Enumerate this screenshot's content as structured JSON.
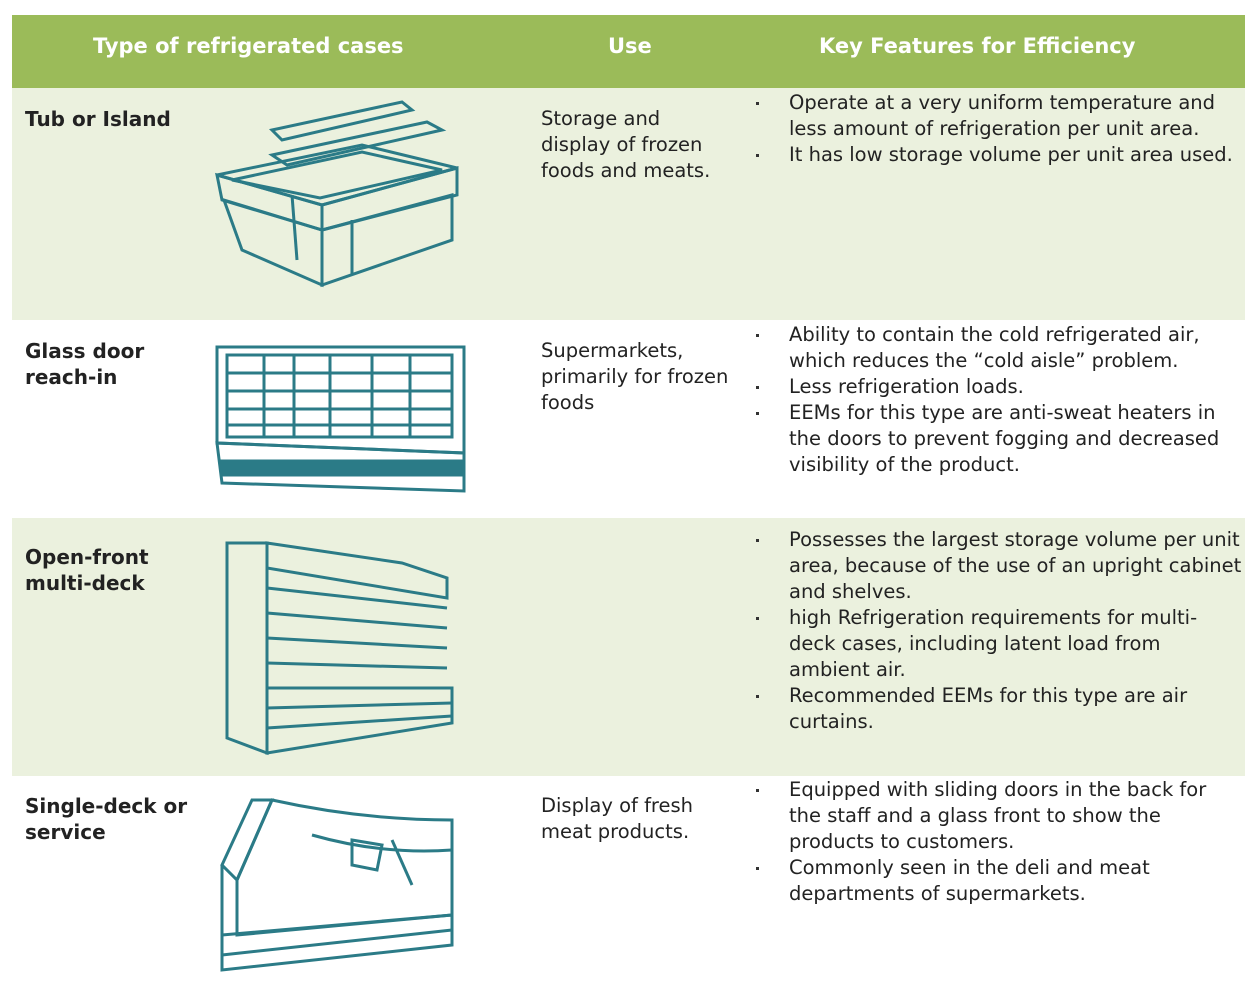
{
  "table": {
    "headers": [
      "Type of refrigerated cases",
      "Use",
      "Key Features for Efficiency"
    ],
    "rows": [
      {
        "type": "Tub or Island",
        "use": "Storage and display of frozen foods and meats.",
        "features": [
          "Operate at a very uniform temperature and less amount of refrigeration per unit area.",
          "It has low storage volume per unit area used."
        ]
      },
      {
        "type": "Glass door reach-in",
        "use": "Supermarkets, primarily for frozen foods",
        "features": [
          "Ability to contain the cold refrigerated air, which reduces the “cold aisle” problem.",
          "Less refrigeration loads.",
          "EEMs for this type are anti-sweat heaters in the doors to prevent fogging and decreased visibility of the product."
        ]
      },
      {
        "type": "Open-front multi-deck",
        "features": [
          "Possesses the largest storage volume per unit area, because of the use of an upright cabinet and shelves.",
          "high Refrigeration requirements for multi-deck cases, including latent load from ambient air.",
          "Recommended EEMs for this type are air curtains."
        ]
      },
      {
        "type": "Single-deck or service",
        "use": "Display of fresh meat products.",
        "features": [
          "Equipped with sliding doors in the back for the staff and a glass front to show the products to customers.",
          "Commonly seen in the deli and meat departments of supermarkets."
        ]
      }
    ]
  }
}
